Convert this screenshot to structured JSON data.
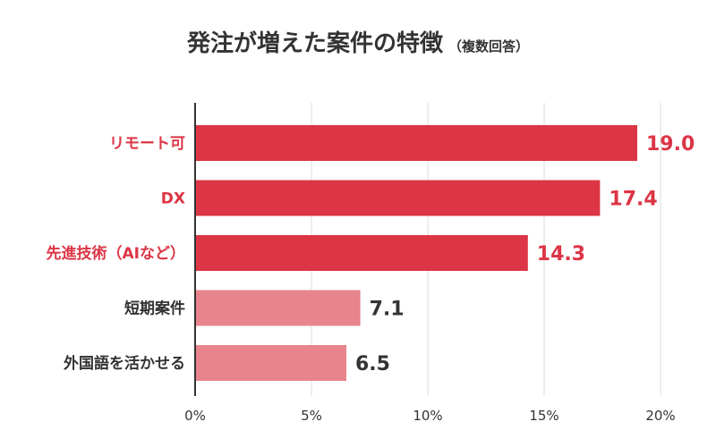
{
  "chart_data": {
    "type": "bar",
    "orientation": "horizontal",
    "title": "発注が増えた案件の特徴",
    "subtitle": "（複数回答）",
    "categories": [
      "リモート可",
      "DX",
      "先進技術（AIなど）",
      "短期案件",
      "外国語を活かせる"
    ],
    "values": [
      19.0,
      17.4,
      14.3,
      7.1,
      6.5
    ],
    "value_labels": [
      "19.0",
      "17.4",
      "14.3",
      "7.1",
      "6.5"
    ],
    "highlight": [
      true,
      true,
      true,
      false,
      false
    ],
    "xlim": [
      0,
      20
    ],
    "xticks": [
      0,
      5,
      10,
      15,
      20
    ],
    "xtick_labels": [
      "0%",
      "5%",
      "10%",
      "15%",
      "20%"
    ],
    "grid": true,
    "colors": {
      "highlight_bar": "#dc3545",
      "normal_bar": "#e8848c",
      "highlight_text": "#dc3545",
      "normal_text": "#333333",
      "grid": "#dddddd",
      "axis": "#333333"
    }
  }
}
